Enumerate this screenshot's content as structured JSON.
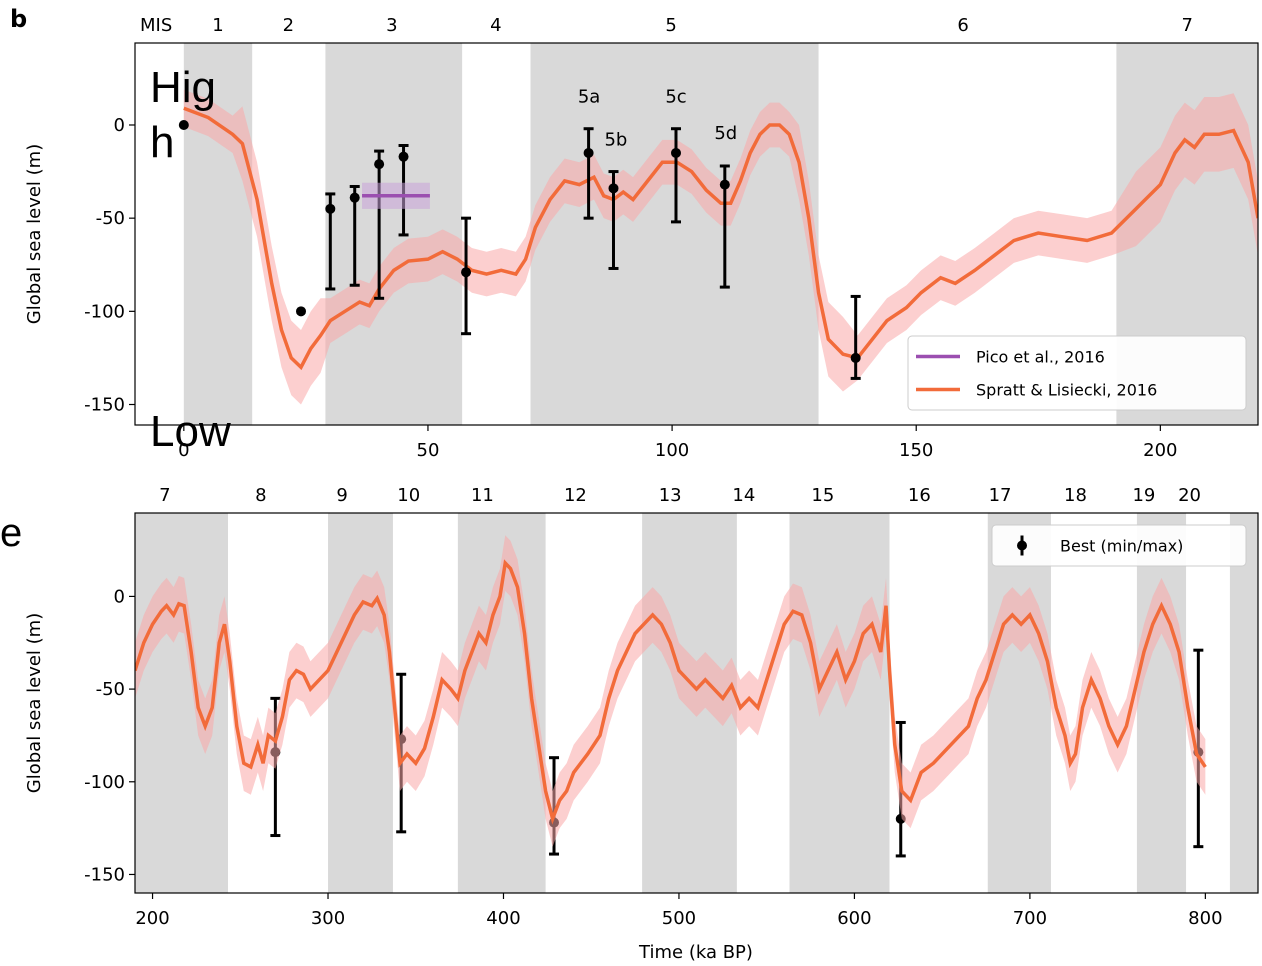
{
  "overlay_texts": [
    "Hig",
    "h",
    "Low"
  ],
  "chart_data": [
    {
      "type": "line",
      "panel_label": "b",
      "ylabel": "Global sea level (m)",
      "xlim": [
        -10,
        220
      ],
      "ylim": [
        -161,
        44
      ],
      "xticks": [
        0,
        50,
        100,
        150,
        200
      ],
      "yticks": [
        -150,
        -100,
        -50,
        0
      ],
      "stage_label": "MIS",
      "stages": {
        "names": [
          "1",
          "2",
          "3",
          "4",
          "5",
          "6",
          "7"
        ],
        "x": [
          7,
          21.4,
          42.6,
          63.9,
          99.8,
          159.6,
          205.5
        ]
      },
      "shaded_bands": [
        [
          0,
          14
        ],
        [
          29,
          57
        ],
        [
          71,
          130
        ],
        [
          191,
          220
        ]
      ],
      "shade_color": "#d9d9d9",
      "legend": "lower right",
      "annotations": [
        {
          "text": "5a",
          "x": 83,
          "y": 12
        },
        {
          "text": "5b",
          "x": 88.5,
          "y": -11
        },
        {
          "text": "5c",
          "x": 100.8,
          "y": 12
        },
        {
          "text": "5d",
          "x": 111,
          "y": -7.5
        }
      ],
      "series": [
        {
          "name": "Pico et al., 2016",
          "color": "#9b4fb0",
          "band_color": "#c9a3d9",
          "x": [
            36.5,
            50.4
          ],
          "values": [
            -38,
            -38
          ],
          "lower": [
            -45,
            -45
          ],
          "upper": [
            -31,
            -31
          ]
        },
        {
          "name": "Spratt & Lisiecki, 2016",
          "color": "#f26b3a",
          "band_color": "#f9a8a8",
          "x": [
            0,
            5,
            10,
            12,
            15,
            18,
            20,
            22,
            24,
            26,
            28,
            30,
            33,
            36,
            38,
            40,
            43,
            46,
            50,
            53,
            56,
            59,
            62,
            65,
            68,
            70,
            72,
            75,
            78,
            81,
            84,
            86,
            88,
            90,
            92,
            95,
            98,
            101,
            104,
            107,
            110,
            112,
            114,
            116,
            118,
            120,
            122,
            124,
            126,
            128,
            130,
            132,
            135,
            138,
            141,
            144,
            148,
            151,
            155,
            158,
            162,
            166,
            170,
            175,
            180,
            185,
            190,
            195,
            200,
            203,
            205,
            207,
            209,
            212,
            215,
            218,
            220
          ],
          "values": [
            9,
            4,
            -5,
            -10,
            -40,
            -85,
            -110,
            -125,
            -130,
            -120,
            -113,
            -105,
            -100,
            -95,
            -97,
            -88,
            -78,
            -73,
            -72,
            -68,
            -72,
            -78,
            -80,
            -78,
            -80,
            -72,
            -55,
            -40,
            -30,
            -32,
            -28,
            -38,
            -40,
            -36,
            -40,
            -30,
            -20,
            -20,
            -25,
            -35,
            -42,
            -42,
            -30,
            -15,
            -5,
            0,
            0,
            -5,
            -20,
            -50,
            -90,
            -115,
            -123,
            -125,
            -115,
            -105,
            -98,
            -90,
            -82,
            -85,
            -78,
            -70,
            -62,
            -58,
            -60,
            -62,
            -58,
            -45,
            -32,
            -15,
            -8,
            -12,
            -5,
            -5,
            -3,
            -20,
            -50
          ],
          "upper": [
            19,
            14,
            5,
            10,
            -20,
            -65,
            -90,
            -105,
            -110,
            -100,
            -93,
            -93,
            -88,
            -83,
            -85,
            -76,
            -66,
            -61,
            -60,
            -56,
            -60,
            -66,
            -68,
            -66,
            -68,
            -60,
            -43,
            -28,
            -18,
            -20,
            -16,
            -26,
            -28,
            -24,
            -28,
            -18,
            -8,
            -8,
            -13,
            -23,
            -30,
            -30,
            -18,
            -3,
            7,
            12,
            12,
            7,
            0,
            -30,
            -70,
            -95,
            -103,
            -113,
            -103,
            -93,
            -86,
            -78,
            -70,
            -73,
            -66,
            -58,
            -50,
            -46,
            -48,
            -50,
            -46,
            -25,
            -12,
            5,
            12,
            8,
            15,
            15,
            17,
            0,
            -30
          ],
          "lower": [
            -1,
            -6,
            -15,
            -30,
            -60,
            -105,
            -130,
            -145,
            -150,
            -140,
            -133,
            -117,
            -112,
            -107,
            -109,
            -100,
            -90,
            -85,
            -84,
            -80,
            -84,
            -90,
            -92,
            -90,
            -92,
            -84,
            -67,
            -52,
            -42,
            -44,
            -40,
            -50,
            -52,
            -48,
            -52,
            -42,
            -32,
            -32,
            -37,
            -47,
            -54,
            -54,
            -42,
            -27,
            -17,
            -12,
            -12,
            -17,
            -40,
            -70,
            -110,
            -135,
            -143,
            -137,
            -127,
            -117,
            -110,
            -102,
            -94,
            -97,
            -90,
            -82,
            -74,
            -70,
            -72,
            -74,
            -70,
            -65,
            -52,
            -35,
            -28,
            -32,
            -25,
            -25,
            -23,
            -40,
            -70
          ]
        }
      ],
      "error_bars": {
        "color": "#000000",
        "x": [
          0,
          24,
          30,
          35,
          40,
          45,
          57.8,
          82.9,
          88,
          100.8,
          110.8,
          137.6
        ],
        "values": [
          0,
          -100,
          -45,
          -39,
          -21,
          -17,
          -79,
          -15,
          -34,
          -15,
          -32,
          -125
        ],
        "lower": [
          null,
          null,
          -88,
          -86,
          -93,
          -59,
          -112,
          -50,
          -77,
          -52,
          -87,
          -136
        ],
        "upper": [
          null,
          null,
          -37,
          -33,
          -14,
          -11,
          -50,
          -2,
          -25,
          -2,
          -22,
          -92
        ]
      }
    },
    {
      "type": "line",
      "panel_label": "e",
      "ylabel": "Global sea level (m)",
      "xlabel": "Time (ka BP)",
      "xlim": [
        190,
        830
      ],
      "ylim": [
        -160,
        45
      ],
      "xticks": [
        200,
        300,
        400,
        500,
        600,
        700,
        800
      ],
      "yticks": [
        -150,
        -100,
        -50,
        0
      ],
      "stages": {
        "names": [
          "7",
          "8",
          "9",
          "10",
          "11",
          "12",
          "13",
          "14",
          "15",
          "16",
          "17",
          "18",
          "19",
          "20"
        ],
        "x": [
          207,
          261.7,
          308,
          346,
          388,
          441,
          495,
          537,
          582,
          637,
          683,
          726,
          765,
          791
        ]
      },
      "shaded_bands": [
        [
          190,
          243
        ],
        [
          300,
          337
        ],
        [
          374,
          424
        ],
        [
          479,
          533
        ],
        [
          563,
          620
        ],
        [
          676,
          712
        ],
        [
          761,
          789
        ],
        [
          814,
          830
        ]
      ],
      "shade_color": "#d9d9d9",
      "legend": "upper right",
      "series": [
        {
          "color": "#f26b3a",
          "band_color": "#f9a8a8",
          "x": [
            190,
            195,
            200,
            205,
            208,
            212,
            215,
            218,
            222,
            226,
            230,
            234,
            238,
            241,
            244,
            248,
            252,
            256,
            260,
            263,
            266,
            270,
            274,
            278,
            282,
            286,
            290,
            295,
            300,
            305,
            310,
            315,
            320,
            325,
            328,
            332,
            335,
            338,
            341,
            345,
            350,
            355,
            360,
            365,
            370,
            374,
            378,
            382,
            386,
            390,
            394,
            398,
            401,
            404,
            408,
            412,
            416,
            420,
            424,
            428,
            432,
            436,
            440,
            448,
            455,
            460,
            465,
            470,
            475,
            480,
            485,
            490,
            495,
            500,
            505,
            510,
            515,
            520,
            525,
            530,
            535,
            540,
            545,
            550,
            555,
            560,
            565,
            570,
            575,
            580,
            585,
            590,
            595,
            600,
            605,
            610,
            615,
            618,
            620,
            623,
            627,
            632,
            638,
            645,
            650,
            655,
            660,
            665,
            670,
            675,
            680,
            685,
            690,
            695,
            700,
            705,
            710,
            715,
            720,
            723,
            726,
            730,
            735,
            740,
            745,
            750,
            755,
            760,
            765,
            770,
            775,
            780,
            785,
            790,
            795,
            800
          ],
          "values": [
            -40,
            -25,
            -15,
            -8,
            -5,
            -10,
            -4,
            -5,
            -30,
            -60,
            -70,
            -60,
            -25,
            -15,
            -35,
            -70,
            -90,
            -92,
            -80,
            -90,
            -75,
            -78,
            -65,
            -45,
            -40,
            -42,
            -50,
            -45,
            -40,
            -30,
            -20,
            -10,
            -3,
            -5,
            -1,
            -10,
            -30,
            -60,
            -90,
            -85,
            -90,
            -82,
            -65,
            -45,
            -50,
            -55,
            -40,
            -30,
            -20,
            -25,
            -10,
            0,
            18,
            15,
            5,
            -20,
            -55,
            -80,
            -105,
            -120,
            -110,
            -105,
            -95,
            -85,
            -75,
            -55,
            -40,
            -30,
            -20,
            -15,
            -10,
            -15,
            -25,
            -40,
            -45,
            -50,
            -45,
            -50,
            -55,
            -48,
            -60,
            -55,
            -60,
            -45,
            -30,
            -15,
            -8,
            -10,
            -25,
            -50,
            -40,
            -30,
            -45,
            -35,
            -20,
            -15,
            -30,
            -5,
            -40,
            -80,
            -105,
            -110,
            -95,
            -90,
            -85,
            -80,
            -75,
            -70,
            -55,
            -45,
            -30,
            -15,
            -10,
            -15,
            -10,
            -20,
            -35,
            -60,
            -75,
            -90,
            -85,
            -60,
            -45,
            -55,
            -70,
            -80,
            -70,
            -50,
            -30,
            -15,
            -5,
            -15,
            -30,
            -60,
            -85,
            -92
          ],
          "upper": [
            -25,
            -10,
            0,
            7,
            10,
            5,
            11,
            10,
            -15,
            -45,
            -55,
            -45,
            -10,
            0,
            -20,
            -55,
            -75,
            -77,
            -65,
            -75,
            -60,
            -63,
            -50,
            -30,
            -25,
            -27,
            -35,
            -30,
            -25,
            -15,
            -5,
            5,
            12,
            10,
            14,
            5,
            -15,
            -45,
            -75,
            -70,
            -75,
            -67,
            -50,
            -30,
            -35,
            -40,
            -25,
            -15,
            -5,
            -10,
            5,
            15,
            33,
            30,
            20,
            -5,
            -40,
            -65,
            -90,
            -105,
            -95,
            -90,
            -80,
            -70,
            -60,
            -40,
            -25,
            -15,
            -5,
            0,
            5,
            0,
            -10,
            -25,
            -30,
            -35,
            -30,
            -35,
            -40,
            -33,
            -45,
            -40,
            -45,
            -30,
            -15,
            0,
            7,
            5,
            -10,
            -35,
            -25,
            -15,
            -30,
            -20,
            -5,
            0,
            -15,
            10,
            -25,
            -65,
            -90,
            -95,
            -80,
            -75,
            -70,
            -65,
            -60,
            -55,
            -40,
            -30,
            -15,
            0,
            5,
            0,
            5,
            -5,
            -20,
            -45,
            -60,
            -75,
            -70,
            -45,
            -30,
            -40,
            -55,
            -65,
            -55,
            -35,
            -15,
            0,
            10,
            0,
            -15,
            -45,
            -70,
            -77
          ],
          "lower": [
            -55,
            -40,
            -30,
            -23,
            -20,
            -25,
            -19,
            -20,
            -45,
            -75,
            -85,
            -75,
            -40,
            -30,
            -50,
            -85,
            -105,
            -107,
            -95,
            -105,
            -90,
            -93,
            -80,
            -60,
            -55,
            -57,
            -65,
            -60,
            -55,
            -45,
            -35,
            -25,
            -18,
            -20,
            -16,
            -25,
            -45,
            -75,
            -105,
            -100,
            -105,
            -97,
            -80,
            -60,
            -65,
            -70,
            -55,
            -45,
            -35,
            -40,
            -25,
            -15,
            3,
            0,
            -10,
            -35,
            -70,
            -95,
            -120,
            -135,
            -125,
            -120,
            -110,
            -100,
            -90,
            -70,
            -55,
            -45,
            -35,
            -30,
            -25,
            -30,
            -40,
            -55,
            -60,
            -65,
            -60,
            -65,
            -70,
            -63,
            -75,
            -70,
            -75,
            -60,
            -45,
            -30,
            -23,
            -25,
            -40,
            -65,
            -55,
            -45,
            -60,
            -50,
            -35,
            -30,
            -45,
            -20,
            -55,
            -95,
            -120,
            -125,
            -110,
            -105,
            -100,
            -95,
            -90,
            -85,
            -70,
            -60,
            -45,
            -30,
            -25,
            -30,
            -25,
            -35,
            -50,
            -75,
            -90,
            -105,
            -100,
            -75,
            -60,
            -70,
            -85,
            -95,
            -85,
            -65,
            -45,
            -30,
            -20,
            -30,
            -45,
            -75,
            -100,
            -107
          ]
        }
      ],
      "error_bars": {
        "name": "Best (min/max)",
        "color": "#000000",
        "x": [
          270,
          341.7,
          428.8,
          626.4,
          796
        ],
        "values": [
          -84,
          -77,
          -122,
          -120,
          -84
        ],
        "lower": [
          -129,
          -127,
          -139,
          -140,
          -135
        ],
        "upper": [
          -55,
          -42,
          -87,
          -68,
          -29
        ]
      }
    }
  ]
}
